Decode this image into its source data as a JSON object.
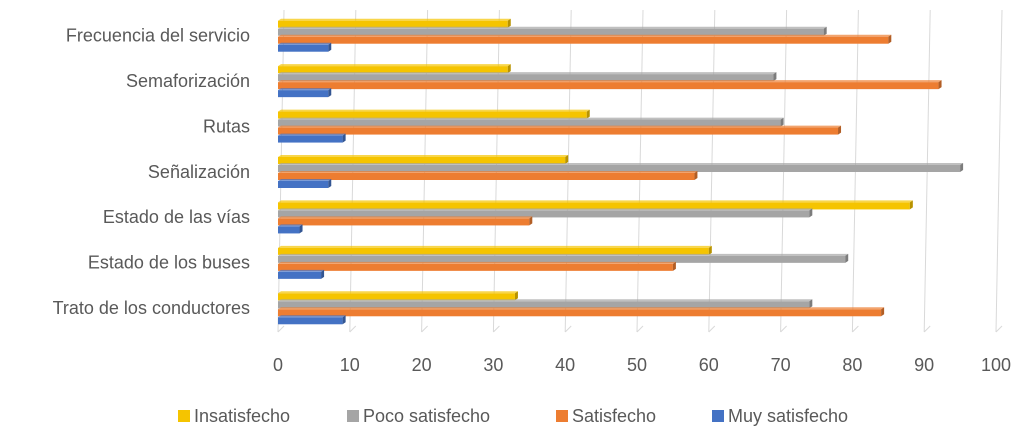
{
  "chart_data": {
    "type": "bar",
    "orientation": "horizontal",
    "categories": [
      "Frecuencia del servicio",
      "Semaforización",
      "Rutas",
      "Señalización",
      "Estado de las vías",
      "Estado de los buses",
      "Trato de los conductores"
    ],
    "series": [
      {
        "name": "Insatisfecho",
        "color": "#f5c400",
        "values": [
          32,
          32,
          43,
          40,
          88,
          60,
          33
        ]
      },
      {
        "name": "Poco satisfecho",
        "color": "#a5a5a5",
        "values": [
          76,
          69,
          70,
          95,
          74,
          79,
          74
        ]
      },
      {
        "name": "Satisfecho",
        "color": "#ed7d31",
        "values": [
          85,
          92,
          78,
          58,
          35,
          55,
          84
        ]
      },
      {
        "name": "Muy satisfecho",
        "color": "#4472c4",
        "values": [
          7,
          7,
          9,
          7,
          3,
          6,
          9
        ]
      }
    ],
    "xlim": [
      0,
      100
    ],
    "xticks": [
      0,
      10,
      20,
      30,
      40,
      50,
      60,
      70,
      80,
      90,
      100
    ],
    "grid": true,
    "legend": "bottom"
  }
}
